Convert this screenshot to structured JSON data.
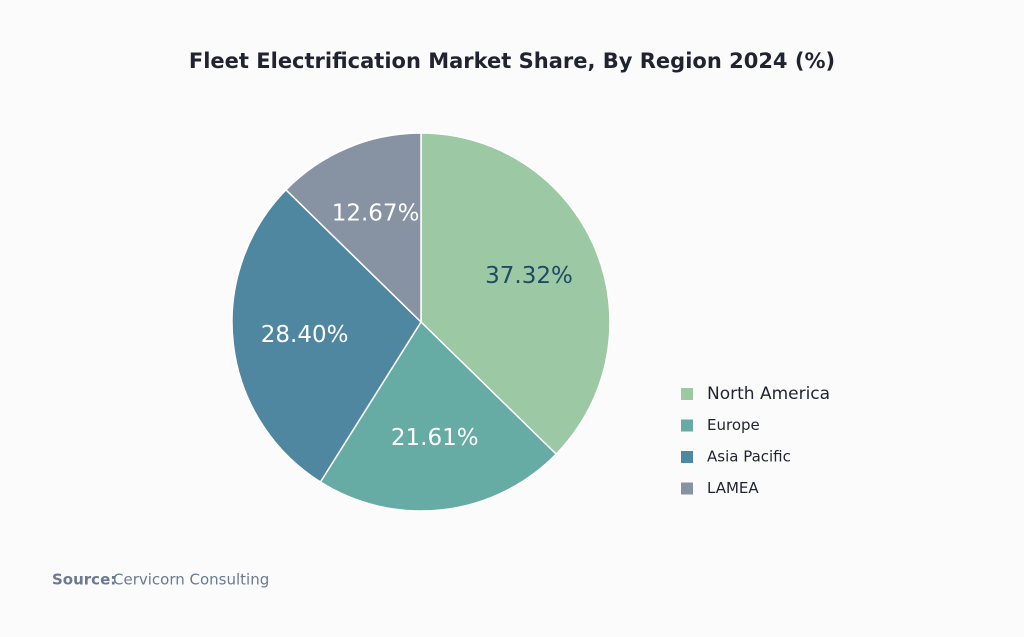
{
  "chart_data": {
    "type": "pie",
    "title": "Fleet Electrification Market Share, By Region 2024 (%)",
    "categories": [
      "North America",
      "Europe",
      "Asia Pacific",
      "LAMEA"
    ],
    "values": [
      37.32,
      21.61,
      28.4,
      12.67
    ],
    "value_labels": [
      "37.32%",
      "21.61%",
      "28.40%",
      "12.67%"
    ],
    "colors": [
      "#9dc8a4",
      "#66aba4",
      "#4f86a0",
      "#8793a3"
    ],
    "label_colors": [
      "#1d4a66",
      "#ffffff",
      "#ffffff",
      "#ffffff"
    ],
    "legend": "right",
    "source_label": "Source:",
    "source": "Cervicorn Consulting"
  }
}
